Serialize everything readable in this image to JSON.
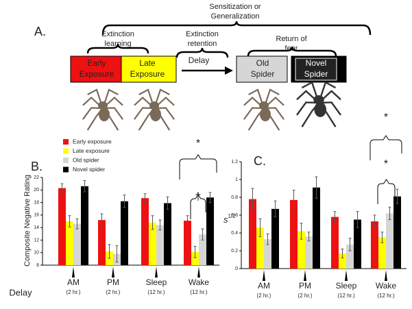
{
  "panel_a": {
    "panel": "A.",
    "top_lines": [
      "Sensitization or",
      "Generalization"
    ],
    "learning_lines": [
      "Extinction",
      "learning"
    ],
    "retention_lines": [
      "Extinction",
      "retention"
    ],
    "return_lines": [
      "Return of",
      "fear"
    ],
    "delay": "Delay",
    "boxes": [
      {
        "lines": [
          "Early",
          "Exposure"
        ],
        "color": "#ee1111"
      },
      {
        "lines": [
          "Late",
          "Exposure"
        ],
        "color": "#ffff00"
      },
      {
        "lines": [
          "Old",
          "Spider"
        ],
        "color": "#d6d6d6"
      },
      {
        "lines": [
          "Novel",
          "Spider"
        ],
        "color": "#000000"
      }
    ]
  },
  "chart_data": [
    {
      "type": "bar",
      "panel": "B.",
      "y_label": "Composite Negative Rating",
      "x_label": "Delay",
      "categories": [
        "AM",
        "PM",
        "Sleep",
        "Wake"
      ],
      "sublabels": [
        "(2 hr.)",
        "(2 hr.)",
        "(12 hr.)",
        "(12 hr.)"
      ],
      "series": [
        {
          "name": "Early exposure",
          "color": "#ee1111",
          "values": [
            20.3,
            15.2,
            18.7,
            15.1
          ],
          "errors": [
            0.7,
            1.0,
            0.7,
            0.8
          ]
        },
        {
          "name": "Late exposure",
          "color": "#ffff00",
          "values": [
            15.0,
            10.2,
            14.8,
            10.1
          ],
          "errors": [
            0.9,
            1.1,
            1.1,
            0.9
          ]
        },
        {
          "name": "Old spider",
          "color": "#d6d6d6",
          "values": [
            14.6,
            9.8,
            14.4,
            12.9
          ],
          "errors": [
            0.8,
            1.3,
            0.8,
            0.9
          ]
        },
        {
          "name": "Novel spider",
          "color": "#000000",
          "values": [
            20.6,
            18.2,
            17.9,
            18.8
          ],
          "errors": [
            0.9,
            1.0,
            1.0,
            0.8
          ]
        }
      ],
      "ylim": [
        8,
        22
      ],
      "yticks": [
        8,
        10,
        12,
        14,
        16,
        18,
        20,
        22
      ],
      "legend": "top-left",
      "annotations": [
        "*",
        "†"
      ]
    },
    {
      "type": "bar",
      "panel": "C.",
      "y_label": "s",
      "y_label_sup": "1/2",
      "categories": [
        "AM",
        "PM",
        "Sleep",
        "Wake"
      ],
      "sublabels": [
        "(2 hr.)",
        "(2 hr.)",
        "(12 hr.)",
        "(12 hr.)"
      ],
      "series": [
        {
          "color": "#ee1111",
          "values": [
            0.78,
            0.77,
            0.58,
            0.53
          ],
          "errors": [
            0.12,
            0.11,
            0.06,
            0.07
          ]
        },
        {
          "color": "#ffff00",
          "values": [
            0.46,
            0.42,
            0.17,
            0.35
          ],
          "errors": [
            0.1,
            0.09,
            0.05,
            0.06
          ]
        },
        {
          "color": "#d6d6d6",
          "values": [
            0.33,
            0.36,
            0.27,
            0.62
          ],
          "errors": [
            0.06,
            0.05,
            0.07,
            0.07
          ]
        },
        {
          "color": "#000000",
          "values": [
            0.67,
            0.91,
            0.55,
            0.81
          ],
          "errors": [
            0.09,
            0.12,
            0.09,
            0.08
          ]
        }
      ],
      "ylim": [
        0,
        1.2
      ],
      "yticks": [
        0,
        0.2,
        0.4,
        0.6,
        0.8,
        1,
        1.2
      ],
      "annotations": [
        "*",
        "*"
      ]
    }
  ]
}
